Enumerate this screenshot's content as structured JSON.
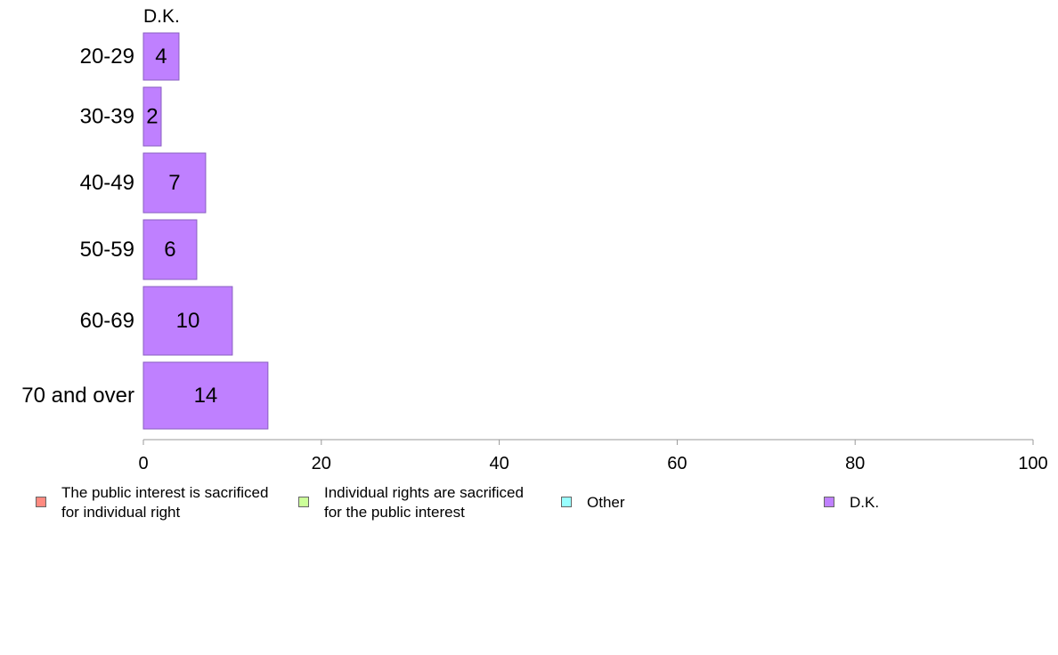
{
  "chart_data": {
    "type": "bar",
    "orientation": "horizontal",
    "panel_title": "D.K.",
    "categories": [
      "20-29",
      "30-39",
      "40-49",
      "50-59",
      "60-69",
      "70 and over"
    ],
    "series": [
      {
        "name": "D.K.",
        "color": "#bf80ff",
        "values": [
          4,
          2,
          7,
          6,
          10,
          14
        ]
      }
    ],
    "xlim": [
      0,
      100
    ],
    "xticks": [
      "0",
      "20",
      "40",
      "60",
      "80",
      "100"
    ],
    "grid": false,
    "legend_placement": "bottom"
  },
  "legend": {
    "items": [
      {
        "lines": [
          "The public interest is sacrificed",
          "for individual right"
        ],
        "color": "#ff8a80"
      },
      {
        "lines": [
          "Individual rights are sacrificed",
          "for the public interest"
        ],
        "color": "#ccff99"
      },
      {
        "lines": [
          "Other"
        ],
        "color": "#99ffff"
      },
      {
        "lines": [
          "D.K."
        ],
        "color": "#bf80ff"
      }
    ]
  }
}
